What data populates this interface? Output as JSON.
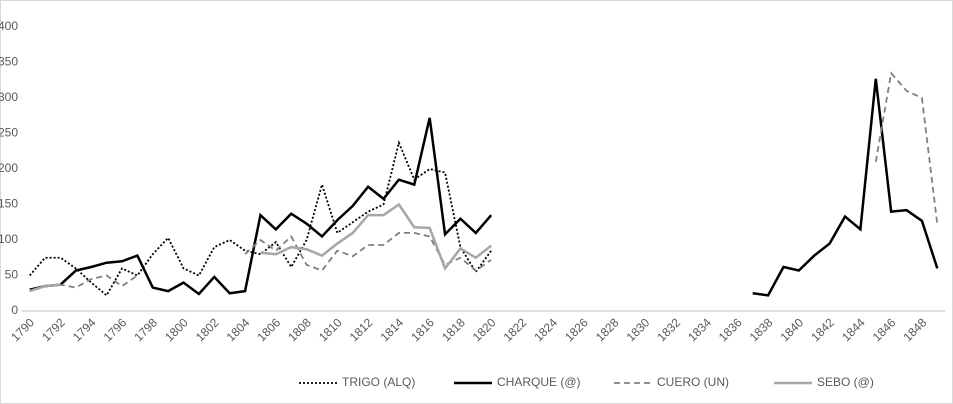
{
  "chart_data": {
    "type": "line",
    "categories": [
      "1790",
      null,
      "1792",
      null,
      "1794",
      null,
      "1796",
      null,
      "1798",
      null,
      "1800",
      null,
      "1802",
      null,
      "1804",
      null,
      "1806",
      null,
      "1808",
      null,
      "1810",
      null,
      "1812",
      null,
      "1814",
      null,
      "1816",
      null,
      "1818",
      null,
      "1820",
      null,
      "1822",
      null,
      "1824",
      null,
      "1826",
      null,
      "1828",
      null,
      "1830",
      null,
      "1832",
      null,
      "1834",
      null,
      "1836",
      null,
      "1838",
      null,
      "1840",
      null,
      "1842",
      null,
      "1844",
      null,
      "1846",
      null,
      "1848",
      null
    ],
    "ylim": [
      0,
      400
    ],
    "yticks": [
      0,
      50,
      100,
      150,
      200,
      250,
      300,
      350,
      400
    ],
    "legend": "bottom",
    "series": [
      {
        "name": "TRIGO (ALQ)",
        "color": "#000000",
        "style": "dotted",
        "values": [
          50,
          75,
          75,
          60,
          40,
          22,
          60,
          50,
          80,
          103,
          60,
          50,
          90,
          100,
          85,
          80,
          97,
          62,
          100,
          178,
          110,
          125,
          140,
          150,
          237,
          185,
          200,
          195,
          90,
          55,
          85,
          null,
          null,
          null,
          null,
          null,
          null,
          null,
          null,
          null,
          null,
          null,
          null,
          null,
          null,
          null,
          null,
          null,
          null,
          null,
          null,
          null,
          null,
          null,
          null,
          null,
          null,
          null,
          null,
          null
        ]
      },
      {
        "name": "CHARQUE (@)",
        "color": "#000000",
        "style": "solid",
        "values": [
          30,
          35,
          37,
          57,
          62,
          68,
          70,
          78,
          33,
          28,
          40,
          24,
          48,
          25,
          28,
          135,
          115,
          137,
          123,
          105,
          128,
          148,
          175,
          158,
          185,
          178,
          272,
          108,
          130,
          110,
          135,
          null,
          null,
          null,
          null,
          null,
          null,
          null,
          null,
          null,
          null,
          null,
          null,
          null,
          null,
          null,
          null,
          25,
          22,
          62,
          57,
          78,
          95,
          133,
          115,
          327,
          140,
          142,
          127,
          60
        ]
      },
      {
        "name": "CUERO (UN)",
        "color": "#7f7f7f",
        "style": "dashed",
        "values": [
          28,
          35,
          37,
          33,
          45,
          50,
          35,
          50,
          null,
          null,
          null,
          null,
          null,
          null,
          80,
          100,
          85,
          105,
          65,
          57,
          85,
          77,
          93,
          93,
          110,
          110,
          105,
          65,
          75,
          57,
          72,
          null,
          null,
          null,
          null,
          null,
          null,
          null,
          null,
          null,
          null,
          null,
          null,
          null,
          null,
          null,
          null,
          null,
          null,
          null,
          null,
          null,
          null,
          null,
          null,
          210,
          335,
          310,
          300,
          122
        ]
      },
      {
        "name": "SEBO (@)",
        "color": "#a6a6a6",
        "style": "solid",
        "values": [
          28,
          35,
          37,
          null,
          null,
          null,
          null,
          null,
          null,
          null,
          null,
          null,
          null,
          null,
          null,
          82,
          80,
          90,
          87,
          78,
          95,
          110,
          135,
          135,
          150,
          118,
          117,
          60,
          88,
          75,
          92,
          null,
          null,
          null,
          null,
          null,
          null,
          null,
          null,
          null,
          null,
          null,
          null,
          null,
          null,
          null,
          null,
          null,
          null,
          null,
          null,
          null,
          null,
          null,
          null,
          null,
          null,
          null,
          null,
          null
        ]
      }
    ]
  }
}
